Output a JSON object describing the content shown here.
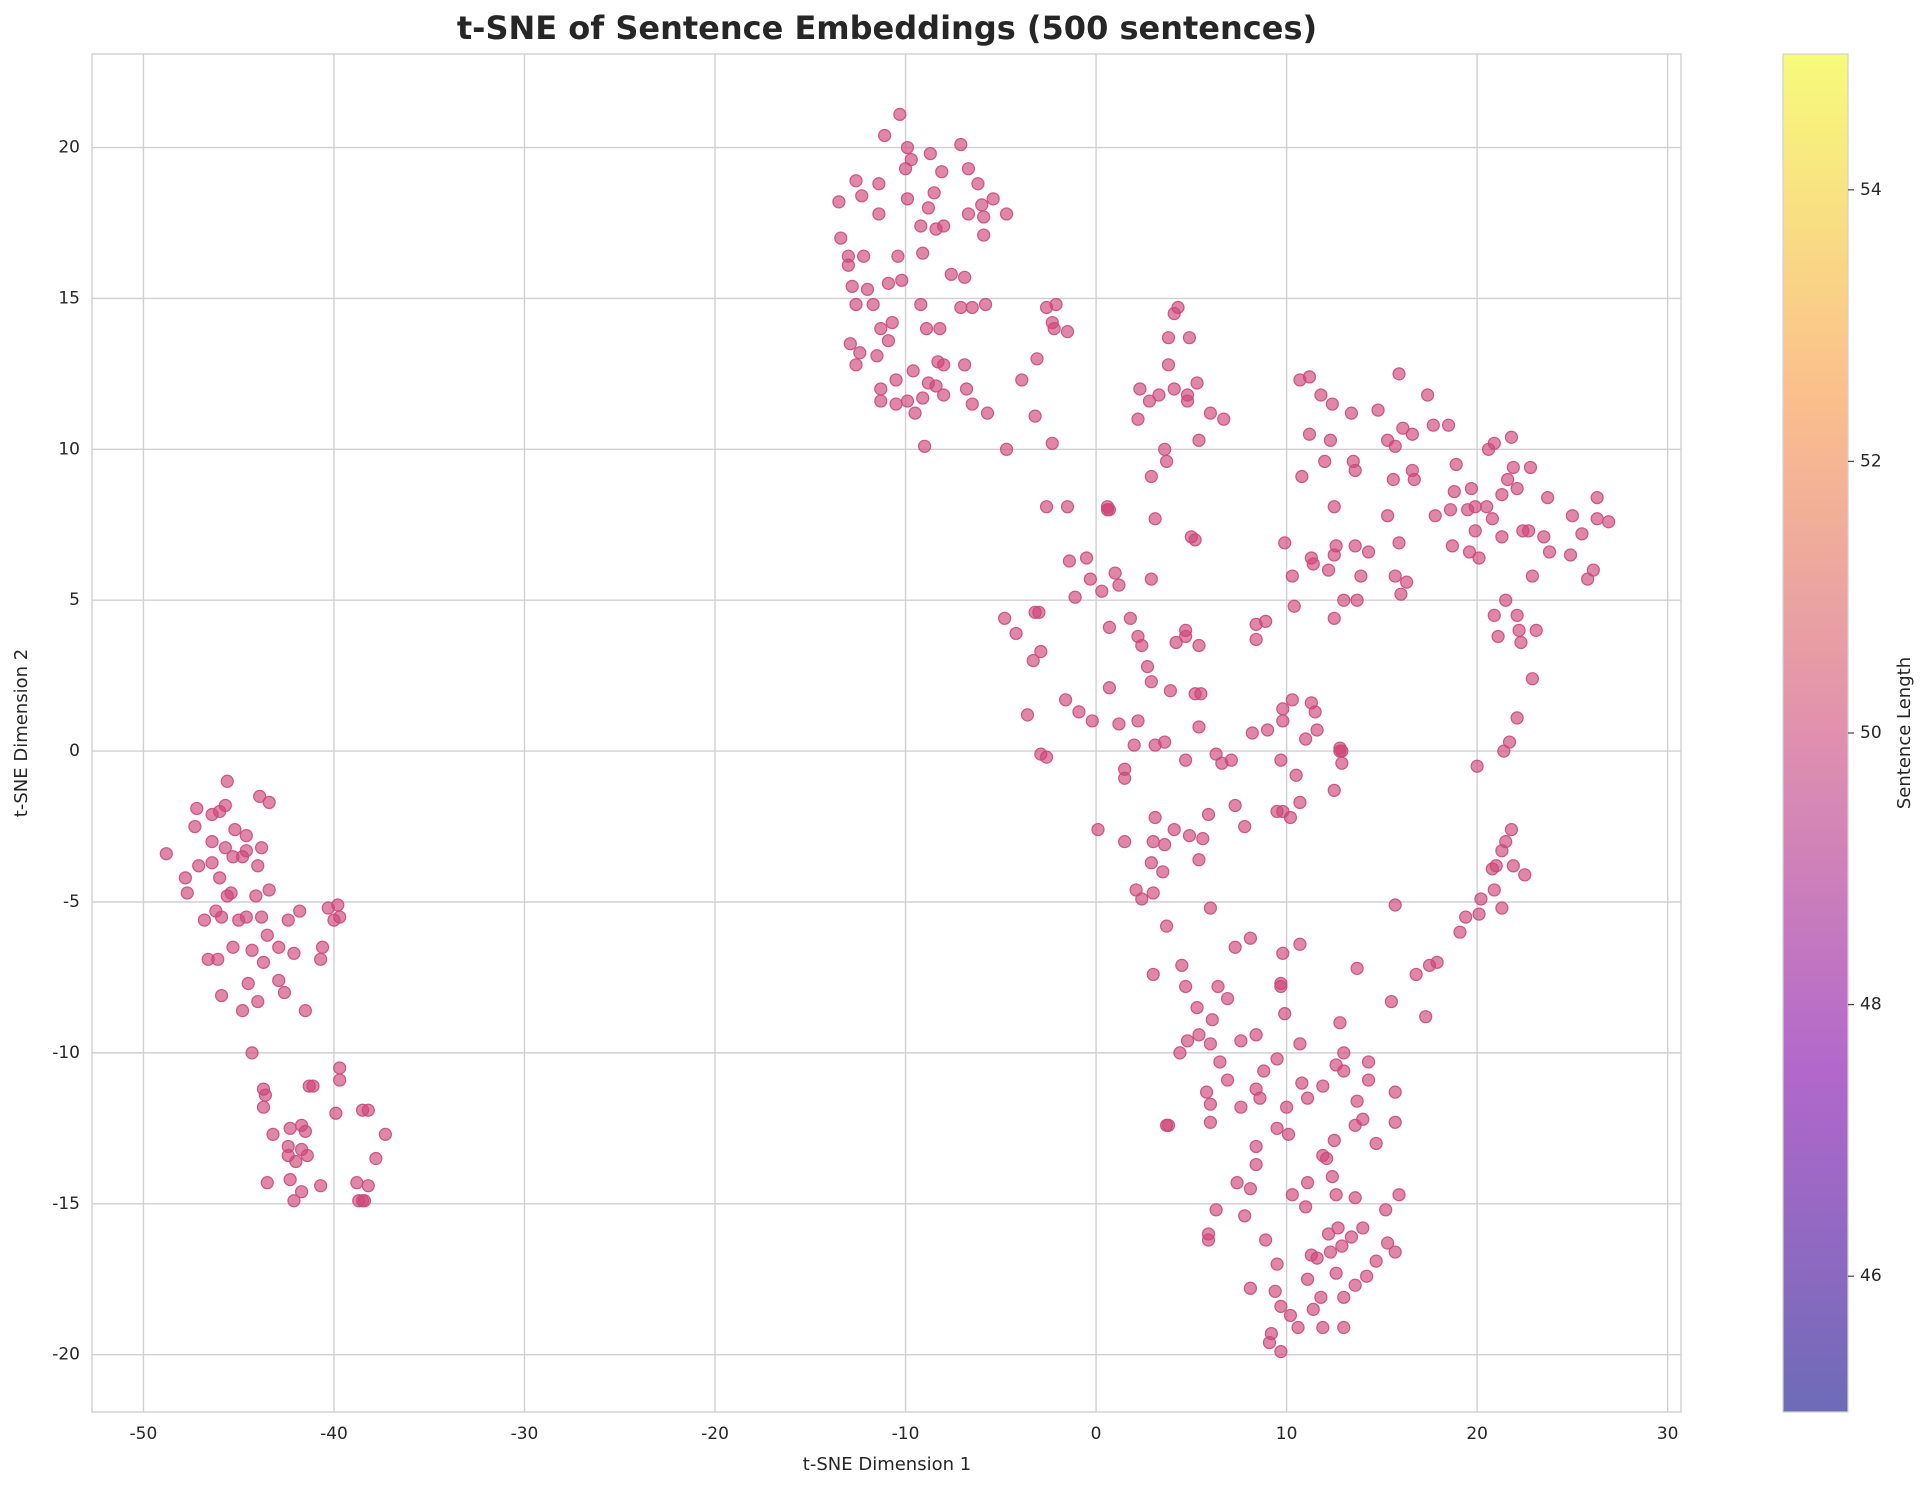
{
  "chart_data": {
    "type": "scatter",
    "title": "t-SNE of Sentence Embeddings (500 sentences)",
    "x_label": "t-SNE Dimension 1",
    "y_label": "t-SNE Dimension 2",
    "color": "#cc4778",
    "grid": true,
    "xlim": [
      -52.7,
      30.7
    ],
    "ylim": [
      -21.9,
      23.1
    ],
    "xticks": [
      -50,
      -40,
      -30,
      -20,
      -10,
      0,
      10,
      20,
      30
    ],
    "yticks": [
      -20,
      -15,
      -10,
      -5,
      0,
      5,
      10,
      15,
      20
    ],
    "colorbar": {
      "label": "Sentence Length",
      "lim": [
        45,
        55
      ],
      "ticks": [
        46,
        48,
        50,
        52,
        54
      ]
    },
    "x": [
      -48.8,
      -47.8,
      -47.7,
      -47.3,
      -47.2,
      -47.1,
      -46.8,
      -46.6,
      -46.4,
      -46.4,
      -46.4,
      -46.2,
      -46.1,
      -46.0,
      -46.0,
      -45.9,
      -45.9,
      -45.7,
      -45.7,
      -45.6,
      -45.6,
      -45.4,
      -45.3,
      -45.3,
      -45.2,
      -45.0,
      -44.8,
      -44.8,
      -44.6,
      -44.6,
      -44.6,
      -44.5,
      -44.3,
      -44.3,
      -44.1,
      -44.0,
      -44.0,
      -43.9,
      -43.8,
      -43.8,
      -43.7,
      -43.7,
      -43.7,
      -43.6,
      -43.5,
      -43.4,
      -43.4,
      -43.5,
      -43.2,
      -42.9,
      -42.9,
      -42.6,
      -42.4,
      -42.4,
      -42.4,
      -42.3,
      -42.3,
      -42.1,
      -42.1,
      -42.0,
      -41.8,
      -41.7,
      -41.7,
      -41.7,
      -41.5,
      -41.5,
      -41.4,
      -41.3,
      -41.1,
      -40.7,
      -40.7,
      -40.6,
      -40.3,
      -40.0,
      -39.9,
      -39.8,
      -39.7,
      -39.7,
      -39.7,
      -38.8,
      -38.7,
      -38.5,
      -38.4,
      -38.5,
      -38.2,
      -38.2,
      -37.8,
      -37.3,
      -13.5,
      -13.4,
      -13.0,
      -13.0,
      -12.9,
      -12.8,
      -12.6,
      -12.6,
      -12.6,
      -12.4,
      -12.2,
      -12.3,
      -12.0,
      -11.7,
      -11.5,
      -11.4,
      -11.4,
      -11.3,
      -11.3,
      -11.3,
      -11.1,
      -10.9,
      -10.9,
      -10.7,
      -10.5,
      -10.5,
      -10.4,
      -10.2,
      -10.3,
      -10.0,
      -9.9,
      -9.9,
      -9.9,
      -9.7,
      -9.6,
      -9.5,
      -9.2,
      -9.2,
      -9.1,
      -9.1,
      -9.0,
      -8.9,
      -8.8,
      -8.8,
      -8.7,
      -8.5,
      -8.4,
      -8.4,
      -8.3,
      -8.2,
      -8.1,
      -8.0,
      -8.0,
      -8.0,
      -7.6,
      -7.1,
      -7.1,
      -6.9,
      -6.9,
      -6.8,
      -6.7,
      -6.7,
      -6.5,
      -6.5,
      -6.2,
      -6.0,
      -5.9,
      -5.9,
      -5.8,
      -5.7,
      -5.4,
      -4.7,
      -4.7,
      -3.9,
      -3.1,
      -3.2,
      -2.6,
      -2.3,
      -2.3,
      -2.2,
      -2.1,
      -1.5,
      -4.8,
      -4.2,
      -3.6,
      -3.3,
      -3.2,
      -3.0,
      -2.9,
      -2.9,
      -2.6,
      -2.6,
      -1.5,
      -1.4,
      -1.6,
      -1.1,
      -0.9,
      -0.5,
      -0.3,
      -0.2,
      0.1,
      0.3,
      0.6,
      0.6,
      0.7,
      0.7,
      0.7,
      1.0,
      1.2,
      1.2,
      1.5,
      1.5,
      1.5,
      1.8,
      2.0,
      2.1,
      2.2,
      2.2,
      2.4,
      2.4,
      2.7,
      2.8,
      2.9,
      2.9,
      2.9,
      2.9,
      3.0,
      3.0,
      3.0,
      3.1,
      3.1,
      3.1,
      3.3,
      3.5,
      3.6,
      3.6,
      3.6,
      3.7,
      3.7,
      3.8,
      3.8,
      3.9,
      4.1,
      4.1,
      4.1,
      4.2,
      4.3,
      4.5,
      4.7,
      4.7,
      4.7,
      4.8,
      4.8,
      4.9,
      4.9,
      5.0,
      5.2,
      5.2,
      5.3,
      5.4,
      5.4,
      5.4,
      5.4,
      5.5,
      5.6,
      5.9,
      6.0,
      6.0,
      6.3,
      6.6,
      6.7,
      7.1,
      7.3,
      7.3,
      7.8,
      8.1,
      8.2,
      8.4,
      8.4,
      8.9,
      9.0,
      9.5,
      9.8,
      10.2,
      2.2,
      2.3,
      9.9,
      10.3,
      10.4,
      10.7,
      10.8,
      11.2,
      11.2,
      11.3,
      11.4,
      11.6,
      11.8,
      12.0,
      12.2,
      12.3,
      12.4,
      12.5,
      12.5,
      12.5,
      12.6,
      13.0,
      13.4,
      13.5,
      13.6,
      13.6,
      13.7,
      13.9,
      14.3,
      14.8,
      15.3,
      15.3,
      15.6,
      15.7,
      15.7,
      15.9,
      15.9,
      16.0,
      16.1,
      16.3,
      16.6,
      16.6,
      16.7,
      17.4,
      17.7,
      17.8,
      18.5,
      18.6,
      18.7,
      18.8,
      18.9,
      19.5,
      19.6,
      19.7,
      19.9,
      19.9,
      20.1,
      20.5,
      20.6,
      20.8,
      20.9,
      20.9,
      21.1,
      21.3,
      21.3,
      21.5,
      21.6,
      21.8,
      21.9,
      22.1,
      22.1,
      22.2,
      22.3,
      22.4,
      22.7,
      22.8,
      22.9,
      23.1,
      23.5,
      23.7,
      23.8,
      24.9,
      25.0,
      25.5,
      25.8,
      26.1,
      26.3,
      26.3,
      26.9,
      22.9,
      22.1,
      21.7,
      21.4,
      20.0,
      9.7,
      9.8,
      9.8,
      10.3,
      10.5,
      10.7,
      11.0,
      11.3,
      11.5,
      12.5,
      12.8,
      12.9,
      12.9,
      12.8,
      21.8,
      21.5,
      21.3,
      21.9,
      22.5,
      21.0,
      20.8,
      20.9,
      21.3,
      20.2,
      20.1,
      19.4,
      19.1,
      17.9,
      17.5,
      16.8,
      17.3,
      15.5,
      15.7,
      13.7,
      10.7,
      9.8,
      9.7,
      9.7,
      9.9,
      6.1,
      5.3,
      4.7,
      6.4,
      6.9,
      7.6,
      8.4,
      4.4,
      4.8,
      5.4,
      6.0,
      6.5,
      6.9,
      5.8,
      6.0,
      3.8,
      3.7,
      6.0,
      7.6,
      8.4,
      8.6,
      8.8,
      9.5,
      9.5,
      10.0,
      10.1,
      10.7,
      10.8,
      11.1,
      11.9,
      12.6,
      12.8,
      13.0,
      13.0,
      13.6,
      13.7,
      14.0,
      14.3,
      14.3,
      14.7,
      15.7,
      15.7,
      12.5,
      11.9,
      12.1,
      12.4,
      12.6,
      11.1,
      10.3,
      11.0,
      8.4,
      8.4,
      7.4,
      8.1,
      6.3,
      7.8,
      5.9,
      5.9,
      8.9,
      9.5,
      8.1,
      9.4,
      9.7,
      10.2,
      9.2,
      9.1,
      9.7,
      10.6,
      11.1,
      11.3,
      11.6,
      11.8,
      11.9,
      11.4,
      12.2,
      12.3,
      12.6,
      12.7,
      12.9,
      13.0,
      13.0,
      13.4,
      13.6,
      13.6,
      14.0,
      14.2,
      14.7,
      15.2,
      15.3,
      15.7,
      15.9
    ],
    "values": [
      -3.4,
      -4.2,
      -4.7,
      -2.5,
      -1.9,
      -3.8,
      -5.6,
      -6.9,
      -2.1,
      -3.0,
      -3.7,
      -5.3,
      -6.9,
      -4.2,
      -2.0,
      -5.5,
      -8.1,
      -1.8,
      -3.2,
      -1.0,
      -4.8,
      -4.7,
      -3.5,
      -6.5,
      -2.6,
      -5.6,
      -8.6,
      -3.5,
      -3.3,
      -2.8,
      -5.5,
      -7.7,
      -10.0,
      -6.6,
      -4.8,
      -3.8,
      -8.3,
      -1.5,
      -3.2,
      -5.5,
      -7.0,
      -11.2,
      -11.8,
      -11.4,
      -6.1,
      -4.6,
      -1.7,
      -14.3,
      -12.7,
      -6.5,
      -7.6,
      -8.0,
      -5.6,
      -13.1,
      -13.4,
      -12.5,
      -14.2,
      -6.7,
      -14.9,
      -13.6,
      -5.3,
      -13.2,
      -14.6,
      -12.4,
      -12.6,
      -8.6,
      -13.4,
      -11.1,
      -11.1,
      -6.9,
      -14.4,
      -6.5,
      -5.2,
      -5.6,
      -12.0,
      -5.1,
      -5.5,
      -10.5,
      -10.9,
      -14.3,
      -14.9,
      -14.9,
      -14.9,
      -11.9,
      -14.4,
      -11.9,
      -13.5,
      -12.7,
      18.2,
      17.0,
      16.1,
      16.4,
      13.5,
      15.4,
      12.8,
      14.8,
      18.9,
      13.2,
      16.4,
      18.4,
      15.3,
      14.8,
      13.1,
      18.8,
      17.8,
      14.0,
      12.0,
      11.6,
      20.4,
      13.6,
      15.5,
      14.2,
      12.3,
      11.5,
      16.4,
      15.6,
      21.1,
      19.3,
      20.0,
      18.3,
      11.6,
      19.6,
      12.6,
      11.2,
      17.4,
      14.8,
      16.5,
      11.7,
      10.1,
      14.0,
      18.0,
      12.2,
      19.8,
      18.5,
      17.3,
      12.1,
      12.9,
      14.0,
      19.2,
      12.8,
      11.8,
      17.4,
      15.8,
      20.1,
      14.7,
      15.7,
      12.8,
      12.0,
      19.3,
      17.8,
      14.7,
      11.5,
      18.8,
      18.1,
      17.1,
      17.7,
      14.8,
      11.2,
      18.3,
      17.8,
      10.0,
      12.3,
      13.0,
      11.1,
      14.7,
      10.2,
      14.2,
      14.0,
      14.8,
      13.9,
      4.4,
      3.9,
      1.2,
      3.0,
      4.6,
      4.6,
      3.3,
      -0.1,
      8.1,
      -0.2,
      8.1,
      6.3,
      1.7,
      5.1,
      1.3,
      6.4,
      5.7,
      1.0,
      -2.6,
      5.3,
      8.0,
      8.1,
      8.0,
      4.1,
      2.1,
      5.9,
      5.5,
      0.9,
      -0.6,
      -0.9,
      -3.0,
      4.4,
      0.2,
      -4.6,
      3.8,
      1.0,
      3.5,
      -4.9,
      2.8,
      11.6,
      9.1,
      5.7,
      2.3,
      -3.7,
      -3.0,
      -4.7,
      -7.4,
      7.7,
      0.2,
      -2.2,
      11.8,
      -4.0,
      10.0,
      0.3,
      -3.1,
      9.6,
      -5.8,
      13.7,
      12.8,
      2.0,
      14.5,
      12.0,
      -2.6,
      3.6,
      14.7,
      -7.1,
      -0.3,
      3.8,
      4.0,
      11.6,
      11.8,
      13.7,
      -2.8,
      7.1,
      7.0,
      1.9,
      12.2,
      10.3,
      3.5,
      0.8,
      -3.6,
      1.9,
      -2.9,
      -2.1,
      11.2,
      -5.2,
      -0.1,
      -0.4,
      11.0,
      -0.3,
      -6.5,
      -1.8,
      -2.5,
      -6.2,
      0.6,
      4.2,
      3.7,
      4.3,
      0.7,
      -2.0,
      -2.0,
      -2.2,
      11.0,
      12.0,
      6.9,
      5.8,
      4.8,
      12.3,
      9.1,
      10.5,
      12.4,
      6.4,
      6.2,
      0.7,
      11.8,
      9.6,
      6.0,
      10.3,
      11.5,
      8.1,
      6.5,
      4.4,
      6.8,
      5.0,
      11.2,
      9.6,
      9.3,
      6.8,
      5.0,
      5.8,
      6.6,
      11.3,
      10.3,
      7.8,
      9.0,
      10.1,
      5.8,
      12.5,
      6.9,
      5.2,
      10.7,
      5.6,
      10.5,
      9.3,
      9.0,
      11.8,
      10.8,
      7.8,
      10.8,
      8.0,
      6.8,
      8.6,
      9.5,
      8.0,
      6.6,
      8.7,
      8.1,
      7.3,
      6.4,
      8.1,
      10.0,
      7.7,
      10.2,
      4.5,
      3.8,
      8.5,
      7.1,
      5.0,
      9.0,
      10.4,
      9.4,
      8.7,
      4.5,
      4.0,
      3.6,
      7.3,
      7.3,
      9.4,
      5.8,
      4.0,
      7.1,
      8.4,
      6.6,
      6.5,
      7.8,
      7.2,
      5.7,
      6.0,
      8.4,
      7.7,
      7.6,
      2.4,
      1.1,
      0.3,
      0.0,
      -0.5,
      -0.3,
      1.4,
      1.0,
      1.7,
      -0.8,
      -1.7,
      0.4,
      1.6,
      1.3,
      -1.3,
      0.0,
      0.0,
      -0.4,
      0.1,
      -2.6,
      -3.0,
      -3.3,
      -3.8,
      -4.1,
      -3.8,
      -3.9,
      -4.6,
      -5.2,
      -4.9,
      -5.4,
      -5.5,
      -6.0,
      -7.0,
      -7.1,
      -7.4,
      -8.8,
      -8.3,
      -5.1,
      -7.2,
      -6.4,
      -6.7,
      -7.7,
      -7.8,
      -8.7,
      -8.9,
      -8.5,
      -7.8,
      -7.8,
      -8.2,
      -9.6,
      -9.4,
      -10.0,
      -9.6,
      -9.4,
      -9.7,
      -10.3,
      -10.9,
      -11.3,
      -11.7,
      -12.4,
      -12.4,
      -12.3,
      -11.8,
      -11.2,
      -11.5,
      -10.6,
      -10.2,
      -12.5,
      -11.8,
      -12.7,
      -9.7,
      -11.0,
      -11.5,
      -11.1,
      -10.4,
      -9.0,
      -10.0,
      -10.6,
      -12.4,
      -11.6,
      -12.2,
      -10.9,
      -10.3,
      -13.0,
      -11.3,
      -12.3,
      -12.9,
      -13.4,
      -13.5,
      -14.1,
      -14.7,
      -14.3,
      -14.7,
      -15.1,
      -13.7,
      -13.1,
      -14.3,
      -14.5,
      -15.2,
      -15.4,
      -16.0,
      -16.2,
      -16.2,
      -17.0,
      -17.8,
      -17.9,
      -18.4,
      -18.7,
      -19.3,
      -19.6,
      -19.9,
      -19.1,
      -17.5,
      -16.7,
      -16.8,
      -18.1,
      -19.1,
      -18.5,
      -16.0,
      -16.6,
      -17.3,
      -15.8,
      -16.4,
      -18.1,
      -19.1,
      -16.1,
      -14.8,
      -17.7,
      -15.8,
      -17.4,
      -16.9,
      -15.2,
      -16.3,
      -16.6,
      -14.7
    ]
  }
}
